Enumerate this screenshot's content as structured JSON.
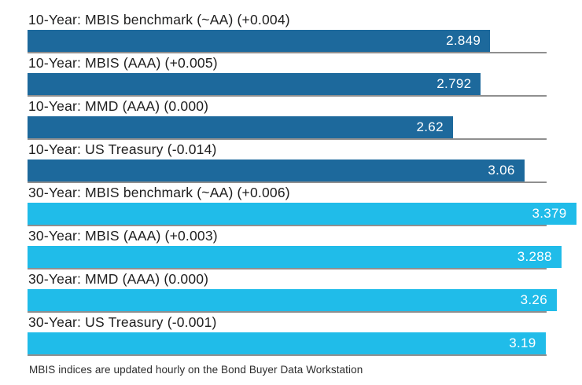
{
  "chart_data": {
    "type": "bar",
    "orientation": "horizontal",
    "title": "",
    "xlabel": "",
    "ylabel": "",
    "xlim": [
      0,
      3.391
    ],
    "grid": false,
    "legend": "none",
    "value_labels_position": "inside-end",
    "colors": {
      "10-year": "#1d699c",
      "30-year": "#20bce9"
    },
    "rule_color": "#8f8f8f",
    "rows": [
      {
        "label": "10-Year: MBIS benchmark (~AA) (+0.004)",
        "value": 2.849,
        "value_label": "2.849",
        "group": "10-year"
      },
      {
        "label": "10-Year: MBIS (AAA) (+0.005)",
        "value": 2.792,
        "value_label": "2.792",
        "group": "10-year"
      },
      {
        "label": "10-Year: MMD (AAA) (0.000)",
        "value": 2.62,
        "value_label": "2.62",
        "group": "10-year"
      },
      {
        "label": "10-Year: US Treasury (-0.014)",
        "value": 3.06,
        "value_label": "3.06",
        "group": "10-year"
      },
      {
        "label": "30-Year: MBIS benchmark (~AA) (+0.006)",
        "value": 3.379,
        "value_label": "3.379",
        "group": "30-year"
      },
      {
        "label": "30-Year: MBIS (AAA) (+0.003)",
        "value": 3.288,
        "value_label": "3.288",
        "group": "30-year"
      },
      {
        "label": "30-Year: MMD (AAA) (0.000)",
        "value": 3.26,
        "value_label": "3.26",
        "group": "30-year"
      },
      {
        "label": "30-Year: US Treasury (-0.001)",
        "value": 3.19,
        "value_label": "3.19",
        "group": "30-year"
      }
    ],
    "footnote": "MBIS indices are updated hourly on the Bond Buyer Data Workstation"
  }
}
